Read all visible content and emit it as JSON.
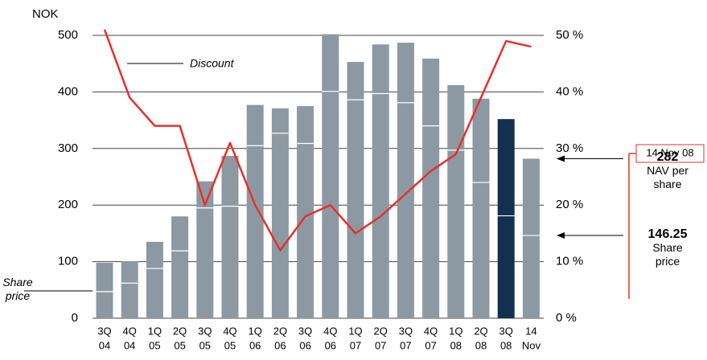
{
  "chart_data": {
    "type": "bar",
    "y_unit": "NOK",
    "categories": [
      [
        "3Q",
        "04"
      ],
      [
        "4Q",
        "04"
      ],
      [
        "1Q",
        "05"
      ],
      [
        "2Q",
        "05"
      ],
      [
        "3Q",
        "05"
      ],
      [
        "4Q",
        "05"
      ],
      [
        "1Q",
        "06"
      ],
      [
        "2Q",
        "06"
      ],
      [
        "3Q",
        "06"
      ],
      [
        "4Q",
        "06"
      ],
      [
        "1Q",
        "07"
      ],
      [
        "2Q",
        "07"
      ],
      [
        "3Q",
        "07"
      ],
      [
        "4Q",
        "07"
      ],
      [
        "1Q",
        "08"
      ],
      [
        "2Q",
        "08"
      ],
      [
        "3Q",
        "08"
      ],
      [
        "14",
        "Nov"
      ]
    ],
    "series": [
      {
        "name": "NAV per share",
        "color": "#8c99a3",
        "highlight_color": "#12304f",
        "highlight_index": 16,
        "values": [
          98,
          101,
          135,
          180,
          242,
          287,
          377,
          371,
          375,
          502,
          453,
          484,
          487,
          459,
          412,
          388,
          352,
          282
        ]
      },
      {
        "name": "Share price",
        "color": "#ffffff",
        "values": [
          47,
          62,
          88,
          119,
          195,
          198,
          305,
          327,
          309,
          401,
          386,
          397,
          381,
          340,
          297,
          240,
          181,
          146.25
        ]
      },
      {
        "name": "Discount",
        "color": "#e8302a",
        "axis": "y2",
        "values": [
          51,
          39,
          34,
          34,
          20,
          31,
          20,
          12,
          18,
          20,
          15,
          18,
          22,
          26,
          29,
          39,
          49,
          48
        ]
      }
    ],
    "ylim": [
      0,
      500
    ],
    "yticks": [
      0,
      100,
      200,
      300,
      400,
      500
    ],
    "y2lim": [
      0,
      50
    ],
    "y2ticks": [
      {
        "value": 0,
        "label": "0 %"
      },
      {
        "value": 10,
        "label": "10 %"
      },
      {
        "value": 20,
        "label": "20 %"
      },
      {
        "value": 30,
        "label": "30 %"
      },
      {
        "value": 40,
        "label": "40 %"
      },
      {
        "value": 50,
        "label": "50 %"
      }
    ],
    "grid": true,
    "callout_date": "14 Nov 08"
  }
}
